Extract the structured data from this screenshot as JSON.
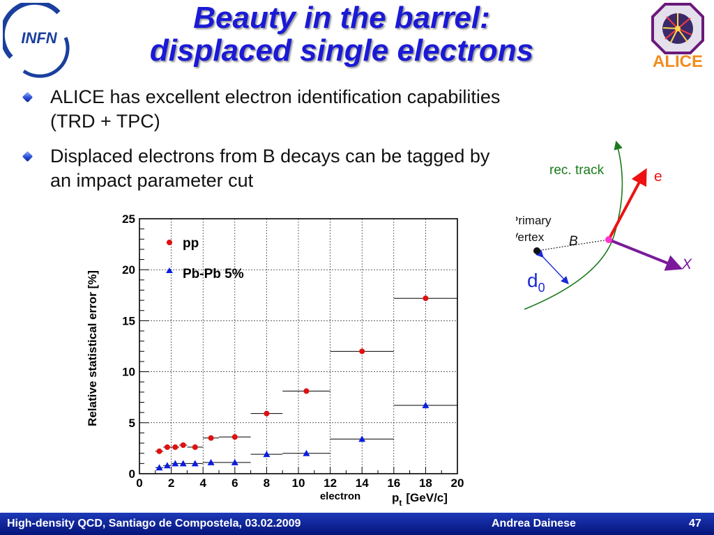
{
  "slide": {
    "title_line1": "Beauty in the barrel:",
    "title_line2": "displaced single electrons",
    "bullets": [
      "ALICE has excellent electron identification capabilities (TRD + TPC)",
      "Displaced electrons from B decays can be tagged by an impact parameter cut"
    ]
  },
  "logos": {
    "left": "INFN",
    "right": "ALICE"
  },
  "footer": {
    "left": "High-density QCD, Santiago de Compostela, 03.02.2009",
    "author": "Andrea Dainese",
    "page": "47"
  },
  "diagram": {
    "track_label": "rec. track",
    "electron_label": "e",
    "vertex_label_1": "Primary",
    "vertex_label_2": "Vertex",
    "b_label": "B",
    "x_label": "X",
    "d0_main": "d",
    "d0_sub": "0"
  },
  "colors": {
    "title": "#1a1ad6",
    "pp": "#e01010",
    "pbpb": "#0a1ee0",
    "track": "#1a7a1a",
    "electron_arrow": "#ee1111",
    "x_arrow": "#7a1a9a"
  },
  "chart_data": {
    "type": "scatter",
    "ylabel": "Relative statistical error [%]",
    "xlabel_main": "p",
    "xlabel_sub": "t",
    "xlabel_units": "[GeV/c]",
    "xlabel_prefix": "electron",
    "xlim": [
      0,
      20
    ],
    "ylim": [
      0,
      25
    ],
    "xticks": [
      0,
      2,
      4,
      6,
      8,
      10,
      12,
      14,
      16,
      18,
      20
    ],
    "yticks": [
      0,
      5,
      10,
      15,
      20,
      25
    ],
    "legend_placement": "top-left",
    "series": [
      {
        "name": "pp",
        "color": "#e01010",
        "marker": "circle",
        "points": [
          {
            "x": 1.25,
            "y": 2.2,
            "xerr": [
              1.0,
              1.5
            ]
          },
          {
            "x": 1.75,
            "y": 2.6,
            "xerr": [
              1.5,
              2.0
            ]
          },
          {
            "x": 2.25,
            "y": 2.6,
            "xerr": [
              2.0,
              2.5
            ]
          },
          {
            "x": 2.75,
            "y": 2.8,
            "xerr": [
              2.5,
              3.0
            ]
          },
          {
            "x": 3.5,
            "y": 2.6,
            "xerr": [
              3.0,
              4.0
            ]
          },
          {
            "x": 4.5,
            "y": 3.5,
            "xerr": [
              4.0,
              5.0
            ]
          },
          {
            "x": 6.0,
            "y": 3.6,
            "xerr": [
              5.0,
              7.0
            ]
          },
          {
            "x": 8.0,
            "y": 5.9,
            "xerr": [
              7.0,
              9.0
            ]
          },
          {
            "x": 10.5,
            "y": 8.1,
            "xerr": [
              9.0,
              12.0
            ]
          },
          {
            "x": 14.0,
            "y": 12.0,
            "xerr": [
              12.0,
              16.0
            ]
          },
          {
            "x": 18.0,
            "y": 17.2,
            "xerr": [
              16.0,
              20.0
            ]
          }
        ]
      },
      {
        "name": "Pb-Pb 5%",
        "color": "#0a1ee0",
        "marker": "triangle",
        "points": [
          {
            "x": 1.25,
            "y": 0.6,
            "xerr": [
              1.0,
              1.5
            ]
          },
          {
            "x": 1.75,
            "y": 0.8,
            "xerr": [
              1.5,
              2.0
            ]
          },
          {
            "x": 2.25,
            "y": 1.0,
            "xerr": [
              2.0,
              2.5
            ]
          },
          {
            "x": 2.75,
            "y": 1.0,
            "xerr": [
              2.5,
              3.0
            ]
          },
          {
            "x": 3.5,
            "y": 1.0,
            "xerr": [
              3.0,
              4.0
            ]
          },
          {
            "x": 4.5,
            "y": 1.1,
            "xerr": [
              4.0,
              5.0
            ]
          },
          {
            "x": 6.0,
            "y": 1.1,
            "xerr": [
              5.0,
              7.0
            ]
          },
          {
            "x": 8.0,
            "y": 1.9,
            "xerr": [
              7.0,
              9.0
            ]
          },
          {
            "x": 10.5,
            "y": 2.0,
            "xerr": [
              9.0,
              12.0
            ]
          },
          {
            "x": 14.0,
            "y": 3.4,
            "xerr": [
              12.0,
              16.0
            ]
          },
          {
            "x": 18.0,
            "y": 6.7,
            "xerr": [
              16.0,
              20.0
            ]
          }
        ]
      }
    ]
  }
}
